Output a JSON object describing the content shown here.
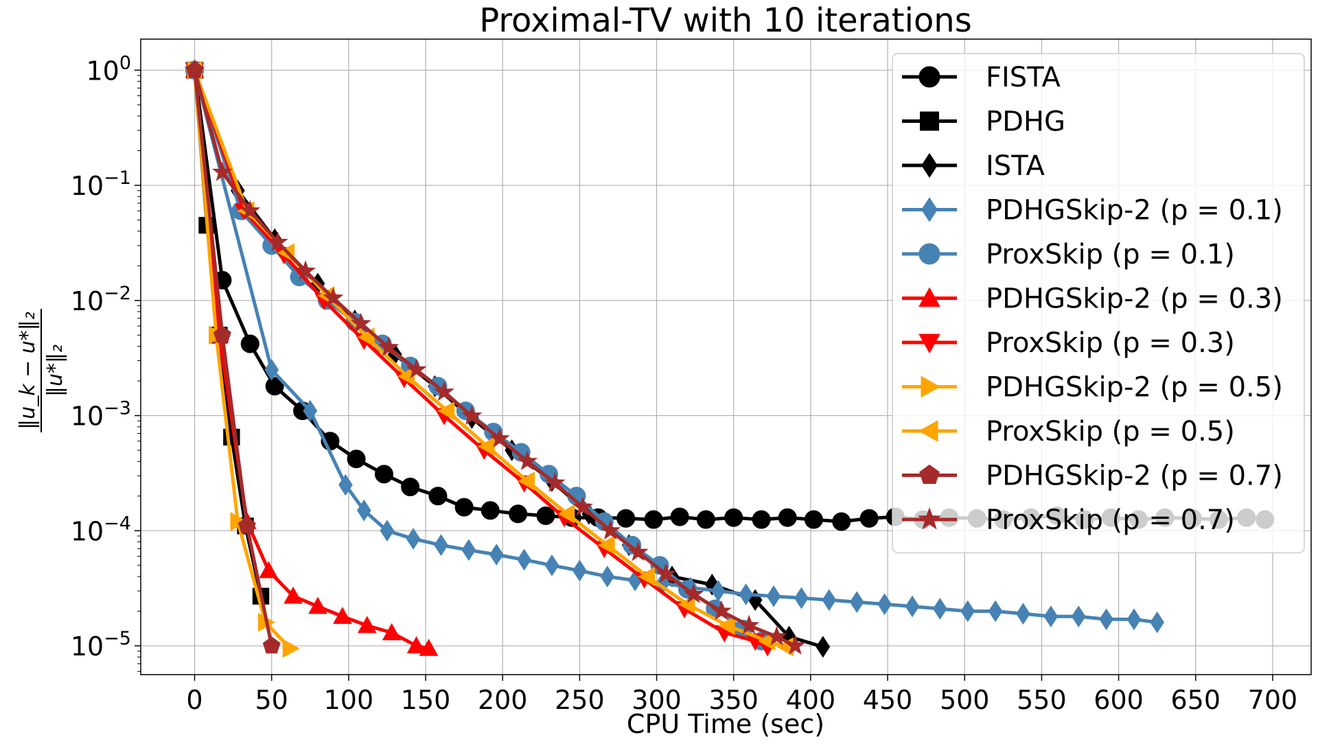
{
  "chart_data": {
    "type": "line",
    "title": "Proximal-TV with 10 iterations",
    "xlabel": "CPU Time (sec)",
    "ylabel": "‖u_k − u*‖₂ / ‖u*‖₂",
    "ylabel_parts": {
      "numerator": "‖u_k − u*‖₂",
      "denominator": "‖u*‖₂"
    },
    "yscale": "log",
    "xlim": [
      -35,
      725
    ],
    "ylim_log10": [
      -5.25,
      0.27
    ],
    "grid": true,
    "legend_position": "top-right",
    "x_ticks": [
      0,
      50,
      100,
      150,
      200,
      250,
      300,
      350,
      400,
      450,
      500,
      550,
      600,
      650,
      700
    ],
    "x_tick_labels": [
      "0",
      "50",
      "100",
      "150",
      "200",
      "250",
      "300",
      "350",
      "400",
      "450",
      "500",
      "550",
      "600",
      "650",
      "700"
    ],
    "y_ticks": [
      {
        "exp": 0,
        "base": "10",
        "sup": "0"
      },
      {
        "exp": -1,
        "base": "10",
        "sup": "−1"
      },
      {
        "exp": -2,
        "base": "10",
        "sup": "−2"
      },
      {
        "exp": -3,
        "base": "10",
        "sup": "−3"
      },
      {
        "exp": -4,
        "base": "10",
        "sup": "−4"
      },
      {
        "exp": -5,
        "base": "10",
        "sup": "−5"
      }
    ],
    "series": [
      {
        "name": "FISTA",
        "color": "#000000",
        "marker": "circle",
        "x": [
          0,
          18,
          36,
          52,
          70,
          88,
          105,
          123,
          140,
          158,
          175,
          192,
          210,
          228,
          245,
          262,
          280,
          298,
          315,
          332,
          350,
          368,
          385,
          402,
          420,
          438,
          455,
          473,
          490,
          508,
          525,
          543,
          560,
          578,
          595,
          613,
          630,
          648,
          665,
          683,
          695
        ],
        "y": [
          1.0,
          0.015,
          0.0042,
          0.0018,
          0.0011,
          0.0006,
          0.00042,
          0.00031,
          0.00024,
          0.0002,
          0.00016,
          0.00015,
          0.00014,
          0.000135,
          0.00013,
          0.00013,
          0.000128,
          0.000125,
          0.000132,
          0.000125,
          0.00013,
          0.000125,
          0.00013,
          0.000125,
          0.00012,
          0.000128,
          0.000132,
          0.000125,
          0.00013,
          0.000128,
          0.000125,
          0.00013,
          0.000135,
          0.000125,
          0.00013,
          0.000125,
          0.00013,
          0.000128,
          0.000125,
          0.00013,
          0.000125
        ]
      },
      {
        "name": "PDHG",
        "color": "#000000",
        "marker": "square",
        "x": [
          0,
          8,
          16,
          24,
          33,
          43
        ],
        "y": [
          1.0,
          0.045,
          0.005,
          0.00065,
          0.00011,
          2.7e-05
        ]
      },
      {
        "name": "ISTA",
        "color": "#000000",
        "marker": "diamond",
        "x": [
          0,
          28,
          52,
          80,
          104,
          130,
          156,
          180,
          206,
          232,
          256,
          282,
          310,
          336,
          364,
          386,
          408
        ],
        "y": [
          1.0,
          0.09,
          0.034,
          0.014,
          0.0067,
          0.0034,
          0.0018,
          0.00095,
          0.0005,
          0.00027,
          0.00014,
          7.5e-05,
          4e-05,
          3.4e-05,
          2.5e-05,
          1.2e-05,
          9.8e-06
        ]
      },
      {
        "name": "PDHGSkip-2 (p = 0.1)",
        "color": "#4682B4",
        "marker": "diamond",
        "x": [
          0,
          50,
          75,
          98,
          110,
          125,
          142,
          160,
          178,
          196,
          214,
          232,
          250,
          268,
          286,
          304,
          322,
          340,
          358,
          376,
          394,
          412,
          430,
          448,
          466,
          484,
          502,
          520,
          538,
          556,
          574,
          592,
          610,
          625
        ],
        "y": [
          1.0,
          0.0025,
          0.0011,
          0.00025,
          0.00015,
          0.0001,
          8.5e-05,
          7.5e-05,
          6.8e-05,
          6.2e-05,
          5.6e-05,
          5e-05,
          4.5e-05,
          4e-05,
          3.7e-05,
          3.5e-05,
          3.2e-05,
          3e-05,
          2.8e-05,
          2.7e-05,
          2.6e-05,
          2.5e-05,
          2.4e-05,
          2.3e-05,
          2.2e-05,
          2.1e-05,
          2e-05,
          2e-05,
          1.9e-05,
          1.8e-05,
          1.8e-05,
          1.7e-05,
          1.7e-05,
          1.6e-05
        ]
      },
      {
        "name": "ProxSkip (p = 0.1)",
        "color": "#4682B4",
        "marker": "circle",
        "x": [
          0,
          30,
          50,
          68,
          86,
          104,
          122,
          140,
          158,
          176,
          194,
          212,
          230,
          248,
          266,
          284,
          302,
          320,
          338,
          356,
          368
        ],
        "y": [
          1.0,
          0.06,
          0.03,
          0.016,
          0.01,
          0.0065,
          0.0042,
          0.0027,
          0.0018,
          0.0011,
          0.00072,
          0.00048,
          0.00031,
          0.0002,
          0.00012,
          7.5e-05,
          5e-05,
          3.1e-05,
          2.1e-05,
          1.4e-05,
          1.1e-05
        ]
      },
      {
        "name": "PDHGSkip-2 (p = 0.3)",
        "color": "#FF0000",
        "marker": "triangle-up",
        "x": [
          0,
          16,
          34,
          48,
          64,
          80,
          96,
          112,
          128,
          144,
          152
        ],
        "y": [
          1.0,
          0.005,
          0.00012,
          4.5e-05,
          2.7e-05,
          2.2e-05,
          1.8e-05,
          1.5e-05,
          1.3e-05,
          1e-05,
          9.5e-06
        ]
      },
      {
        "name": "ProxSkip (p = 0.3)",
        "color": "#FF0000",
        "marker": "triangle-down",
        "x": [
          0,
          32,
          58,
          84,
          110,
          136,
          162,
          188,
          214,
          240,
          266,
          292,
          318,
          344,
          364,
          372
        ],
        "y": [
          1.0,
          0.06,
          0.025,
          0.01,
          0.0045,
          0.0021,
          0.001,
          0.0005,
          0.00026,
          0.00013,
          7e-05,
          3.8e-05,
          2.1e-05,
          1.3e-05,
          1.1e-05,
          9.8e-06
        ]
      },
      {
        "name": "PDHGSkip-2 (p = 0.5)",
        "color": "#FFA500",
        "marker": "triangle-right",
        "x": [
          0,
          14,
          28,
          46,
          62
        ],
        "y": [
          1.0,
          0.005,
          0.00012,
          1.6e-05,
          9.5e-06
        ]
      },
      {
        "name": "ProxSkip (p = 0.5)",
        "color": "#FFA500",
        "marker": "triangle-left",
        "x": [
          0,
          34,
          60,
          86,
          112,
          138,
          164,
          190,
          216,
          242,
          268,
          294,
          320,
          346,
          372,
          384
        ],
        "y": [
          1.0,
          0.06,
          0.026,
          0.011,
          0.0048,
          0.0022,
          0.0011,
          0.00054,
          0.00027,
          0.00014,
          7.5e-05,
          4e-05,
          2.3e-05,
          1.5e-05,
          1.1e-05,
          9.8e-06
        ]
      },
      {
        "name": "PDHGSkip-2 (p = 0.7)",
        "color": "#A52A2A",
        "marker": "pentagon",
        "x": [
          0,
          18,
          34,
          50
        ],
        "y": [
          1.0,
          0.005,
          0.00011,
          1e-05
        ]
      },
      {
        "name": "ProxSkip (p = 0.7)",
        "color": "#A52A2A",
        "marker": "star",
        "x": [
          0,
          18,
          36,
          54,
          72,
          90,
          108,
          126,
          144,
          162,
          180,
          198,
          216,
          234,
          252,
          270,
          288,
          306,
          324,
          342,
          360,
          378,
          390
        ],
        "y": [
          1.0,
          0.13,
          0.06,
          0.032,
          0.018,
          0.0105,
          0.0063,
          0.0039,
          0.0025,
          0.0016,
          0.00099,
          0.00063,
          0.0004,
          0.00026,
          0.00016,
          0.0001,
          6.5e-05,
          4.2e-05,
          2.8e-05,
          2e-05,
          1.5e-05,
          1.2e-05,
          1e-05
        ]
      }
    ]
  }
}
